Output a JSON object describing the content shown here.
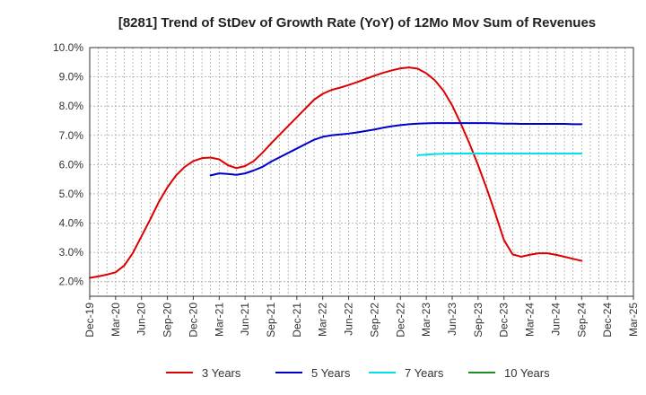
{
  "chart_data": {
    "type": "line",
    "title": "[8281]  Trend of StDev of Growth Rate (YoY) of 12Mo Mov Sum of Revenues",
    "xlabel": "",
    "ylabel": "",
    "ylim": [
      1.5,
      10.0
    ],
    "y_ticks": [
      2.0,
      3.0,
      4.0,
      5.0,
      6.0,
      7.0,
      8.0,
      9.0,
      10.0
    ],
    "y_tick_labels": [
      "2.0%",
      "3.0%",
      "4.0%",
      "5.0%",
      "6.0%",
      "7.0%",
      "8.0%",
      "9.0%",
      "10.0%"
    ],
    "x_tick_labels": [
      "Dec-19",
      "Mar-20",
      "Jun-20",
      "Sep-20",
      "Dec-20",
      "Mar-21",
      "Jun-21",
      "Sep-21",
      "Dec-21",
      "Mar-22",
      "Jun-22",
      "Sep-22",
      "Dec-22",
      "Mar-23",
      "Jun-23",
      "Sep-23",
      "Dec-23",
      "Mar-24",
      "Jun-24",
      "Sep-24",
      "Dec-24",
      "Mar-25"
    ],
    "x_range_months": [
      0,
      63
    ],
    "grid": true,
    "legend_position": "bottom",
    "series": [
      {
        "name": "3 Years",
        "color": "#dd0000",
        "months": [
          0,
          1,
          2,
          3,
          4,
          5,
          6,
          7,
          8,
          9,
          10,
          11,
          12,
          13,
          14,
          15,
          16,
          17,
          18,
          19,
          20,
          21,
          22,
          23,
          24,
          25,
          26,
          27,
          28,
          29,
          30,
          31,
          32,
          33,
          34,
          35,
          36,
          37,
          38,
          39,
          40,
          41,
          42,
          43,
          44,
          45,
          46,
          47,
          48,
          49,
          50,
          51,
          52,
          53,
          54,
          55,
          56,
          57,
          58,
          59,
          60
        ],
        "values": [
          2.13,
          2.18,
          2.24,
          2.32,
          2.55,
          2.98,
          3.55,
          4.12,
          4.72,
          5.22,
          5.63,
          5.92,
          6.12,
          6.22,
          6.24,
          6.18,
          5.98,
          5.88,
          5.95,
          6.12,
          6.4,
          6.72,
          7.02,
          7.32,
          7.62,
          7.92,
          8.22,
          8.42,
          8.55,
          8.63,
          8.72,
          8.82,
          8.93,
          9.04,
          9.14,
          9.22,
          9.29,
          9.32,
          9.28,
          9.12,
          8.88,
          8.52,
          8.02,
          7.4,
          6.72,
          5.98,
          5.18,
          4.32,
          3.42,
          2.93,
          2.85,
          2.92,
          2.97,
          2.97,
          2.92,
          2.85,
          2.78,
          2.71,
          null,
          null,
          null
        ]
      },
      {
        "name": "5 Years",
        "color": "#0000cc",
        "months": [
          14,
          15,
          16,
          17,
          18,
          19,
          20,
          21,
          22,
          23,
          24,
          25,
          26,
          27,
          28,
          29,
          30,
          31,
          32,
          33,
          34,
          35,
          36,
          37,
          38,
          39,
          40,
          41,
          42,
          43,
          44,
          45,
          46,
          47,
          48,
          49,
          50,
          51,
          52,
          53,
          54,
          55,
          56,
          57
        ],
        "values": [
          5.63,
          5.7,
          5.68,
          5.65,
          5.7,
          5.8,
          5.92,
          6.1,
          6.25,
          6.4,
          6.55,
          6.7,
          6.85,
          6.95,
          7.0,
          7.03,
          7.06,
          7.1,
          7.15,
          7.2,
          7.26,
          7.31,
          7.35,
          7.38,
          7.4,
          7.41,
          7.42,
          7.42,
          7.42,
          7.42,
          7.42,
          7.42,
          7.42,
          7.41,
          7.4,
          7.4,
          7.39,
          7.39,
          7.39,
          7.39,
          7.39,
          7.39,
          7.38,
          7.38
        ]
      },
      {
        "name": "7 Years",
        "color": "#00e0e8",
        "months": [
          38,
          39,
          40,
          41,
          42,
          43,
          44,
          45,
          46,
          47,
          48,
          49,
          50,
          51,
          52,
          53,
          54,
          55,
          56,
          57
        ],
        "values": [
          6.32,
          6.34,
          6.36,
          6.37,
          6.38,
          6.38,
          6.38,
          6.38,
          6.38,
          6.38,
          6.38,
          6.38,
          6.38,
          6.38,
          6.38,
          6.38,
          6.38,
          6.38,
          6.38,
          6.38
        ]
      },
      {
        "name": "10 Years",
        "color": "#228b22",
        "months": [],
        "values": []
      }
    ]
  }
}
